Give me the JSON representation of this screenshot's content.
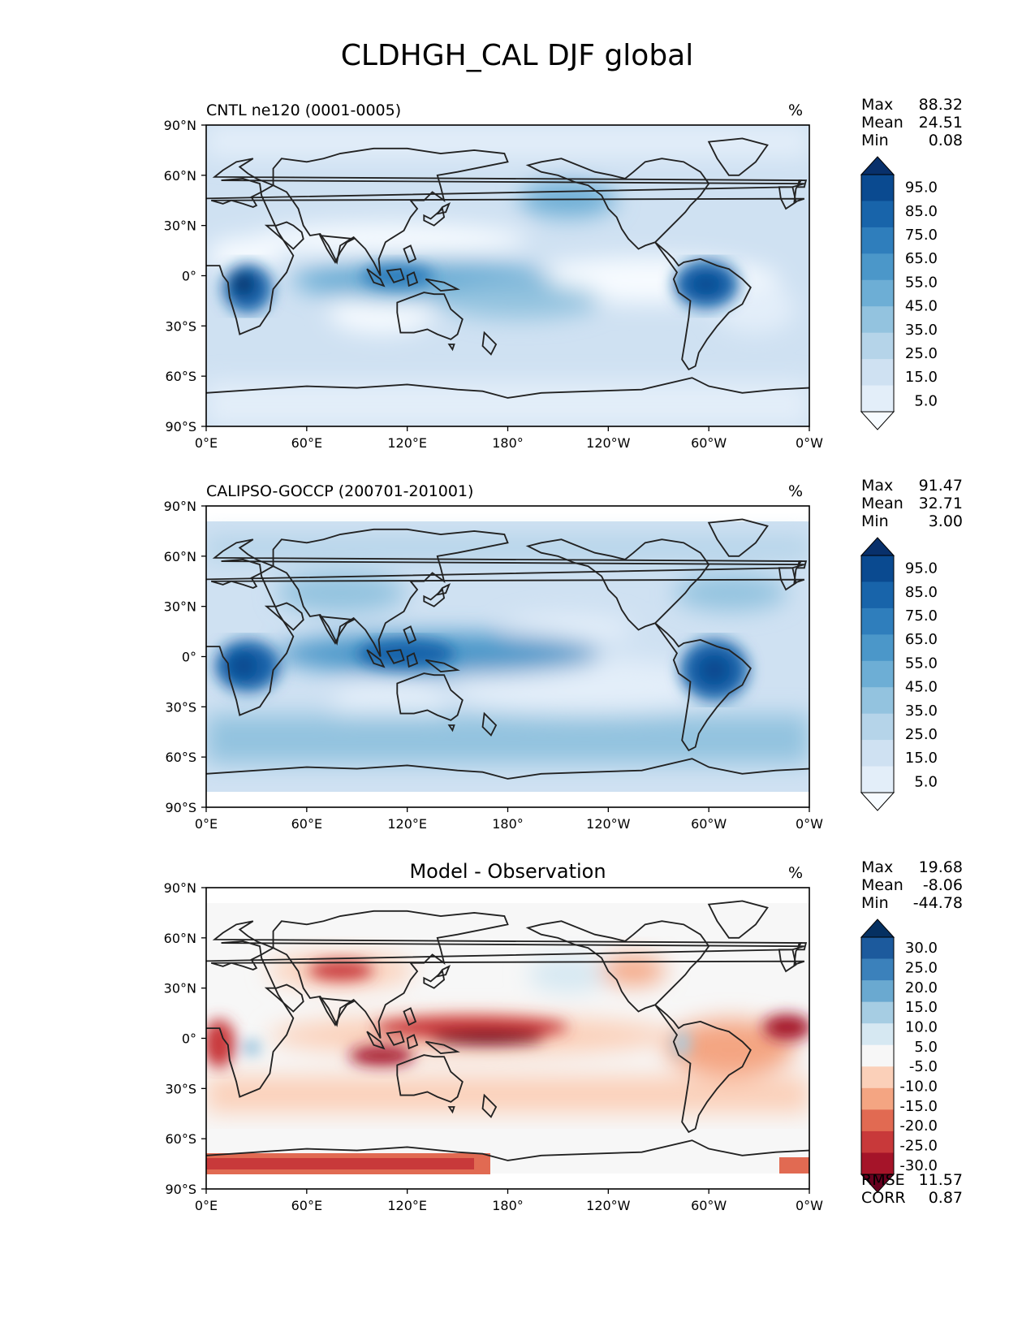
{
  "chart_data": [
    {
      "type": "heatmap",
      "figure_title": "CLDHGH_CAL DJF global",
      "title": "CNTL ne120 (0001-0005)",
      "units": "%",
      "x_ticks": [
        "0°E",
        "60°E",
        "120°E",
        "180°",
        "120°W",
        "60°W",
        "0°W"
      ],
      "y_ticks": [
        "90°N",
        "60°N",
        "30°N",
        "0°",
        "30°S",
        "60°S",
        "90°S"
      ],
      "xlim": [
        0,
        360
      ],
      "ylim": [
        -90,
        90
      ],
      "stats": [
        {
          "label": "Max",
          "value": "88.32"
        },
        {
          "label": "Mean",
          "value": "24.51"
        },
        {
          "label": "Min",
          "value": "0.08"
        }
      ],
      "colorbar": {
        "levels": [
          0,
          5,
          10,
          20,
          30,
          40,
          50,
          60,
          70,
          80,
          90,
          100
        ],
        "tick_labels": [
          "95.0",
          "85.0",
          "75.0",
          "65.0",
          "55.0",
          "45.0",
          "35.0",
          "25.0",
          "15.0",
          "5.0"
        ],
        "colors": [
          "#f7fbff",
          "#e3eef9",
          "#cfe1f2",
          "#b5d4e9",
          "#93c3df",
          "#6daed5",
          "#4b97c9",
          "#2f7ebc",
          "#1864aa",
          "#0a4a90",
          "#08306b"
        ],
        "extend": "both"
      }
    },
    {
      "type": "heatmap",
      "title": "CALIPSO-GOCCP (200701-201001)",
      "units": "%",
      "x_ticks": [
        "0°E",
        "60°E",
        "120°E",
        "180°",
        "120°W",
        "60°W",
        "0°W"
      ],
      "y_ticks": [
        "90°N",
        "60°N",
        "30°N",
        "0°",
        "30°S",
        "60°S",
        "90°S"
      ],
      "xlim": [
        0,
        360
      ],
      "ylim": [
        -90,
        90
      ],
      "stats": [
        {
          "label": "Max",
          "value": "91.47"
        },
        {
          "label": "Mean",
          "value": "32.71"
        },
        {
          "label": "Min",
          "value": "3.00"
        }
      ],
      "colorbar": {
        "levels": [
          0,
          5,
          10,
          20,
          30,
          40,
          50,
          60,
          70,
          80,
          90,
          100
        ],
        "tick_labels": [
          "95.0",
          "85.0",
          "75.0",
          "65.0",
          "55.0",
          "45.0",
          "35.0",
          "25.0",
          "15.0",
          "5.0"
        ],
        "colors": [
          "#f7fbff",
          "#e3eef9",
          "#cfe1f2",
          "#b5d4e9",
          "#93c3df",
          "#6daed5",
          "#4b97c9",
          "#2f7ebc",
          "#1864aa",
          "#0a4a90",
          "#08306b"
        ],
        "extend": "both"
      }
    },
    {
      "type": "heatmap",
      "title": "Model - Observation",
      "units": "%",
      "x_ticks": [
        "0°E",
        "60°E",
        "120°E",
        "180°",
        "120°W",
        "60°W",
        "0°W"
      ],
      "y_ticks": [
        "90°N",
        "60°N",
        "30°N",
        "0°",
        "30°S",
        "60°S",
        "90°S"
      ],
      "xlim": [
        0,
        360
      ],
      "ylim": [
        -90,
        90
      ],
      "stats": [
        {
          "label": "Max",
          "value": "19.68"
        },
        {
          "label": "Mean",
          "value": "-8.06"
        },
        {
          "label": "Min",
          "value": "-44.78"
        }
      ],
      "metrics": [
        {
          "label": "RMSE",
          "value": "11.57"
        },
        {
          "label": "CORR",
          "value": "0.87"
        }
      ],
      "colorbar": {
        "levels": [
          -35,
          -30,
          -25,
          -20,
          -15,
          -10,
          -5,
          5,
          10,
          15,
          20,
          25,
          30,
          35
        ],
        "tick_labels": [
          "30.0",
          "25.0",
          "20.0",
          "15.0",
          "10.0",
          "5.0",
          "-5.0",
          "-10.0",
          "-15.0",
          "-20.0",
          "-25.0",
          "-30.0"
        ],
        "colors": [
          "#67001f",
          "#a51429",
          "#c8393a",
          "#e16a52",
          "#f4a582",
          "#fbd0b9",
          "#f7f7f7",
          "#d6e8f2",
          "#a6cde3",
          "#6aa9d0",
          "#3b81bb",
          "#1c5a9d",
          "#053061"
        ],
        "extend": "both"
      }
    }
  ]
}
